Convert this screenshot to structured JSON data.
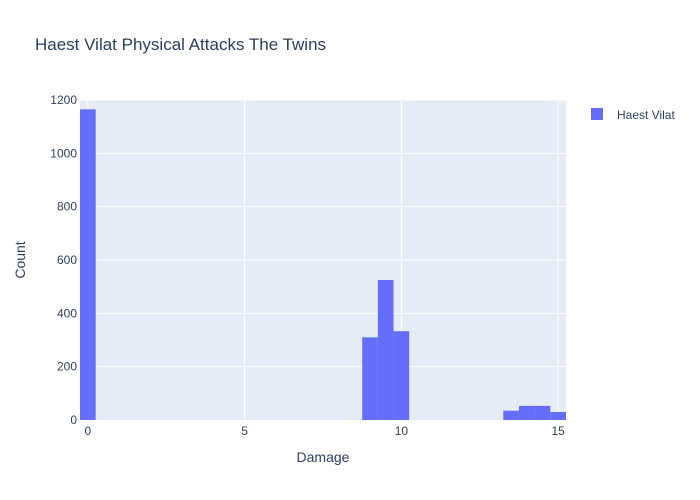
{
  "chart_data": {
    "type": "bar",
    "title": "Haest Vilat Physical Attacks The Twins",
    "xlabel": "Damage",
    "ylabel": "Count",
    "xlim": [
      -0.25,
      15.25
    ],
    "ylim": [
      0,
      1200
    ],
    "x_ticks": [
      0,
      5,
      10,
      15
    ],
    "y_ticks": [
      0,
      200,
      400,
      600,
      800,
      1000,
      1200
    ],
    "bin_width": 0.5,
    "grid": true,
    "legend_position": "top-right",
    "series": [
      {
        "name": "Haest Vilat",
        "color": "#636efa",
        "bins": [
          {
            "x0": -0.25,
            "x1": 0.25,
            "count": 1165
          },
          {
            "x0": 8.75,
            "x1": 9.25,
            "count": 310
          },
          {
            "x0": 9.25,
            "x1": 9.75,
            "count": 525
          },
          {
            "x0": 9.75,
            "x1": 10.25,
            "count": 333
          },
          {
            "x0": 13.25,
            "x1": 13.75,
            "count": 35
          },
          {
            "x0": 13.75,
            "x1": 14.25,
            "count": 53
          },
          {
            "x0": 14.25,
            "x1": 14.75,
            "count": 53
          },
          {
            "x0": 14.75,
            "x1": 15.25,
            "count": 30
          }
        ]
      }
    ]
  }
}
